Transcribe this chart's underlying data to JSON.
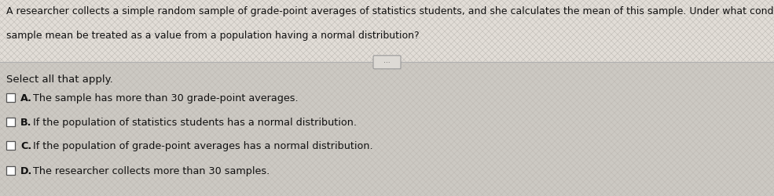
{
  "bg_color": "#d8d8d8",
  "stripe_color": "#cccccc",
  "top_section_bg": "#e8e4de",
  "bottom_section_bg": "#d0cdc8",
  "question_text_line1": "A researcher collects a simple random sample of grade-point averages of statistics students, and she calculates the mean of this sample. Under what conditions can that",
  "question_text_line2": "sample mean be treated as a value from a population having a normal distribution?",
  "select_label": "Select all that apply.",
  "options": [
    {
      "letter": "A.",
      "text": "The sample has more than 30 grade-point averages."
    },
    {
      "letter": "B.",
      "text": "If the population of statistics students has a normal distribution."
    },
    {
      "letter": "C.",
      "text": "If the population of grade-point averages has a normal distribution."
    },
    {
      "letter": "D.",
      "text": "The researcher collects more than 30 samples."
    }
  ],
  "text_color": "#111111",
  "font_size_question": 9.0,
  "font_size_options": 9.2,
  "font_size_select": 9.5,
  "divider_color": "#b0b0b0",
  "checkbox_edge_color": "#555555",
  "checkbox_face_color": "#ffffff"
}
